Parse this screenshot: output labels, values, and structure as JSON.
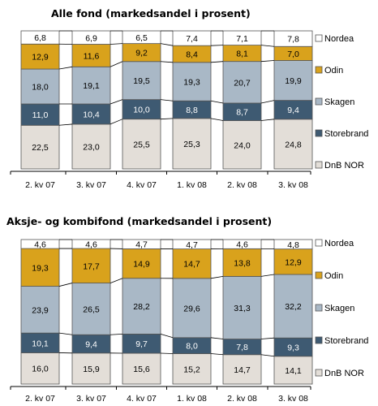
{
  "colors": {
    "Nordea": "#ffffff",
    "Odin": "#d9a21c",
    "Skagen": "#a9b8c6",
    "Storebrand": "#3e5a72",
    "DnB NOR": "#e3ded8",
    "border": "#555555"
  },
  "chart_data": [
    {
      "type": "bar",
      "stacked": true,
      "title": "Alle fond (markedsandel i prosent)",
      "categories": [
        "2. kv 07",
        "3. kv 07",
        "4. kv 07",
        "1. kv 08",
        "2. kv 08",
        "3. kv 08"
      ],
      "series": [
        {
          "name": "DnB NOR",
          "values": [
            22.5,
            23.0,
            25.5,
            25.3,
            24.0,
            24.8
          ],
          "labels": [
            "22,5",
            "23,0",
            "25,5",
            "25,3",
            "24,0",
            "24,8"
          ]
        },
        {
          "name": "Storebrand",
          "values": [
            11.0,
            10.4,
            10.0,
            8.8,
            8.7,
            9.4
          ],
          "labels": [
            "11,0",
            "10,4",
            "10,0",
            "8,8",
            "8,7",
            "9,4"
          ]
        },
        {
          "name": "Skagen",
          "values": [
            18.0,
            19.1,
            19.5,
            19.3,
            20.7,
            19.9
          ],
          "labels": [
            "18,0",
            "19,1",
            "19,5",
            "19,3",
            "20,7",
            "19,9"
          ]
        },
        {
          "name": "Odin",
          "values": [
            12.9,
            11.6,
            9.2,
            8.4,
            8.1,
            7.0
          ],
          "labels": [
            "12,9",
            "11,6",
            "9,2",
            "8,4",
            "8,1",
            "7,0"
          ]
        },
        {
          "name": "Nordea",
          "values": [
            6.8,
            6.9,
            6.5,
            7.4,
            7.1,
            7.8
          ],
          "labels": [
            "6,8",
            "6,9",
            "6,5",
            "7,4",
            "7,1",
            "7,8"
          ]
        }
      ],
      "legend": [
        "Nordea",
        "Odin",
        "Skagen",
        "Storebrand",
        "DnB NOR"
      ],
      "legend_position": "right"
    },
    {
      "type": "bar",
      "stacked": true,
      "title": "Aksje- og kombifond (markedsandel i prosent)",
      "categories": [
        "2. kv 07",
        "3. kv 07",
        "4. kv 07",
        "1. kv 08",
        "2. kv 08",
        "3. kv 08"
      ],
      "series": [
        {
          "name": "DnB NOR",
          "values": [
            16.0,
            15.9,
            15.6,
            15.2,
            14.7,
            14.1
          ],
          "labels": [
            "16,0",
            "15,9",
            "15,6",
            "15,2",
            "14,7",
            "14,1"
          ]
        },
        {
          "name": "Storebrand",
          "values": [
            10.1,
            9.4,
            9.7,
            8.0,
            7.8,
            9.3
          ],
          "labels": [
            "10,1",
            "9,4",
            "9,7",
            "8,0",
            "7,8",
            "9,3"
          ]
        },
        {
          "name": "Skagen",
          "values": [
            23.9,
            26.5,
            28.2,
            29.6,
            31.3,
            32.2
          ],
          "labels": [
            "23,9",
            "26,5",
            "28,2",
            "29,6",
            "31,3",
            "32,2"
          ]
        },
        {
          "name": "Odin",
          "values": [
            19.3,
            17.7,
            14.9,
            14.7,
            13.8,
            12.9
          ],
          "labels": [
            "19,3",
            "17,7",
            "14,9",
            "14,7",
            "13,8",
            "12,9"
          ]
        },
        {
          "name": "Nordea",
          "values": [
            4.6,
            4.6,
            4.7,
            4.7,
            4.6,
            4.8
          ],
          "labels": [
            "4,6",
            "4,6",
            "4,7",
            "4,7",
            "4,6",
            "4,8"
          ]
        }
      ],
      "legend": [
        "Nordea",
        "Odin",
        "Skagen",
        "Storebrand",
        "DnB NOR"
      ],
      "legend_position": "right"
    }
  ]
}
